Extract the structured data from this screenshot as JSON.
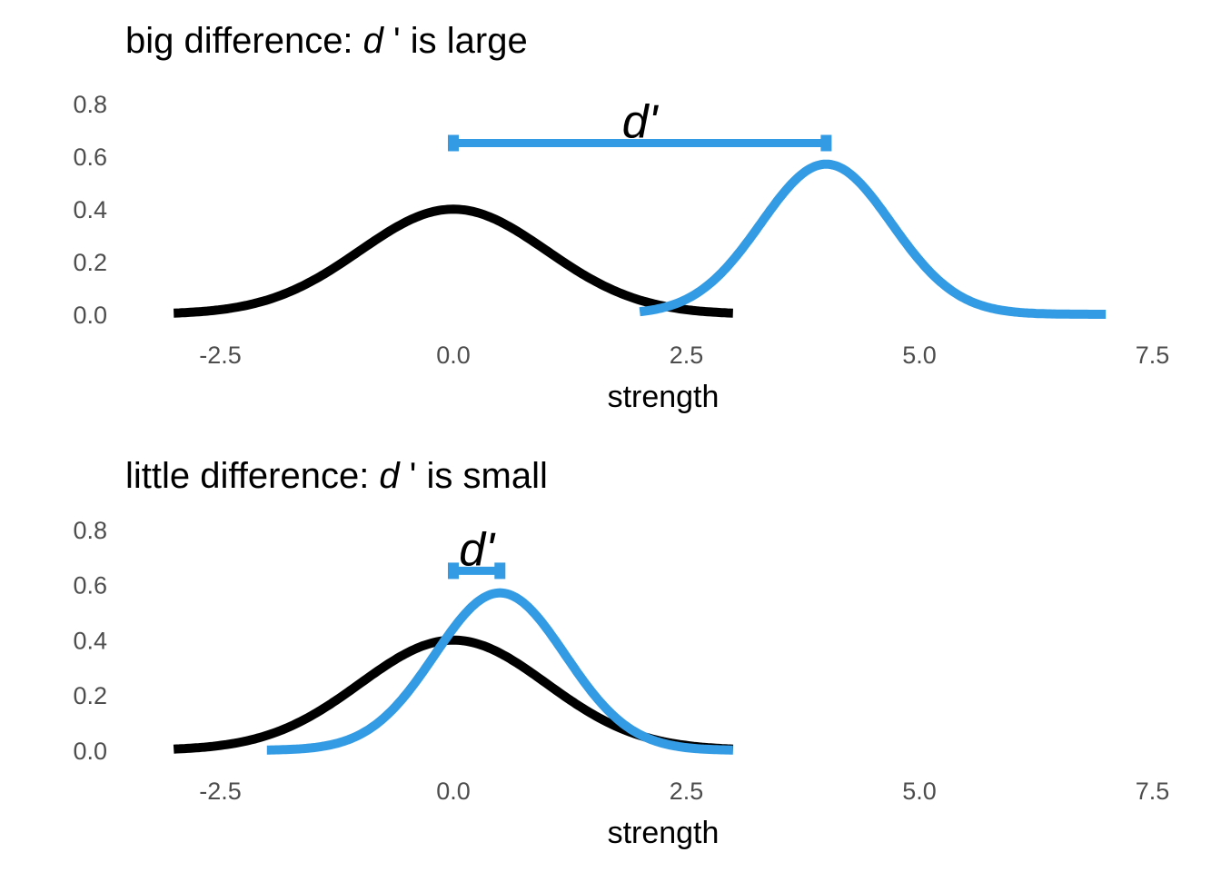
{
  "chart_data": [
    {
      "type": "line",
      "title": {
        "prefix": "big difference: ",
        "italic": "d",
        "suffix": " ' is large"
      },
      "xlabel": "strength",
      "ylabel": "",
      "xlim": [
        -3,
        7.5
      ],
      "ylim": [
        0,
        0.8
      ],
      "xticks": [
        "-2.5",
        "0.0",
        "2.5",
        "5.0",
        "7.5"
      ],
      "yticks": [
        "0.0",
        "0.2",
        "0.4",
        "0.6",
        "0.8"
      ],
      "grid": false,
      "series": [
        {
          "distribution": "normal",
          "mean": 0,
          "sd": 1,
          "x_range": [
            -3,
            3
          ],
          "color": "#000000"
        },
        {
          "distribution": "normal",
          "mean": 4,
          "sd": 0.7,
          "x_range": [
            2,
            7
          ],
          "color": "#339be3"
        }
      ],
      "annotation": {
        "label": "d'",
        "from": 0,
        "to": 4,
        "y": 0.65,
        "color": "#339be3"
      }
    },
    {
      "type": "line",
      "title": {
        "prefix": "little difference: ",
        "italic": "d",
        "suffix": " ' is small"
      },
      "xlabel": "strength",
      "ylabel": "",
      "xlim": [
        -3,
        7.5
      ],
      "ylim": [
        0,
        0.8
      ],
      "xticks": [
        "-2.5",
        "0.0",
        "2.5",
        "5.0",
        "7.5"
      ],
      "yticks": [
        "0.0",
        "0.2",
        "0.4",
        "0.6",
        "0.8"
      ],
      "grid": false,
      "series": [
        {
          "distribution": "normal",
          "mean": 0,
          "sd": 1,
          "x_range": [
            -3,
            3
          ],
          "color": "#000000"
        },
        {
          "distribution": "normal",
          "mean": 0.5,
          "sd": 0.7,
          "x_range": [
            -2,
            3
          ],
          "color": "#339be3"
        }
      ],
      "annotation": {
        "label": "d'",
        "from": 0,
        "to": 0.5,
        "y": 0.65,
        "color": "#339be3"
      }
    }
  ]
}
